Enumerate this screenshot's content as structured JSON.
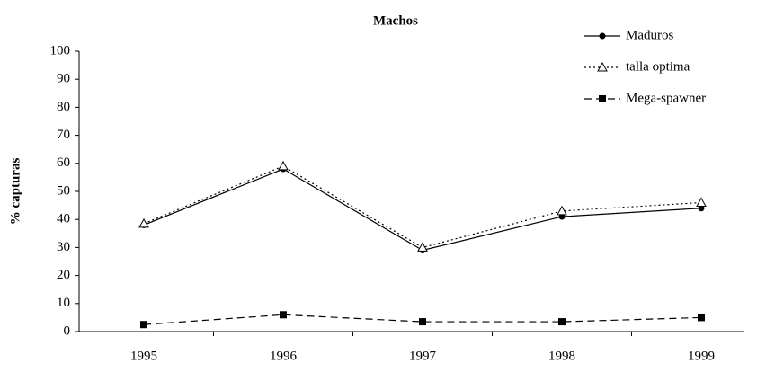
{
  "chart_data": {
    "type": "line",
    "title": "Machos",
    "y_label": "% capturas",
    "categories": [
      "1995",
      "1996",
      "1997",
      "1998",
      "1999"
    ],
    "series": [
      {
        "name": "Maduros",
        "color": "#000000",
        "line_style": "solid",
        "marker": "circle",
        "values": [
          38,
          58,
          29,
          41,
          44
        ]
      },
      {
        "name": "talla optima",
        "color": "#000000",
        "line_style": "dotted",
        "marker": "triangle",
        "values": [
          38.5,
          59,
          30,
          43,
          46
        ]
      },
      {
        "name": "Mega-spawner",
        "color": "#000000",
        "line_style": "dashed",
        "marker": "square",
        "values": [
          2.5,
          6,
          3.5,
          3.5,
          5
        ]
      }
    ],
    "ylim": [
      0,
      100
    ],
    "yticks": [
      0,
      10,
      20,
      30,
      40,
      50,
      60,
      70,
      80,
      90,
      100
    ],
    "legend": "top-right"
  }
}
